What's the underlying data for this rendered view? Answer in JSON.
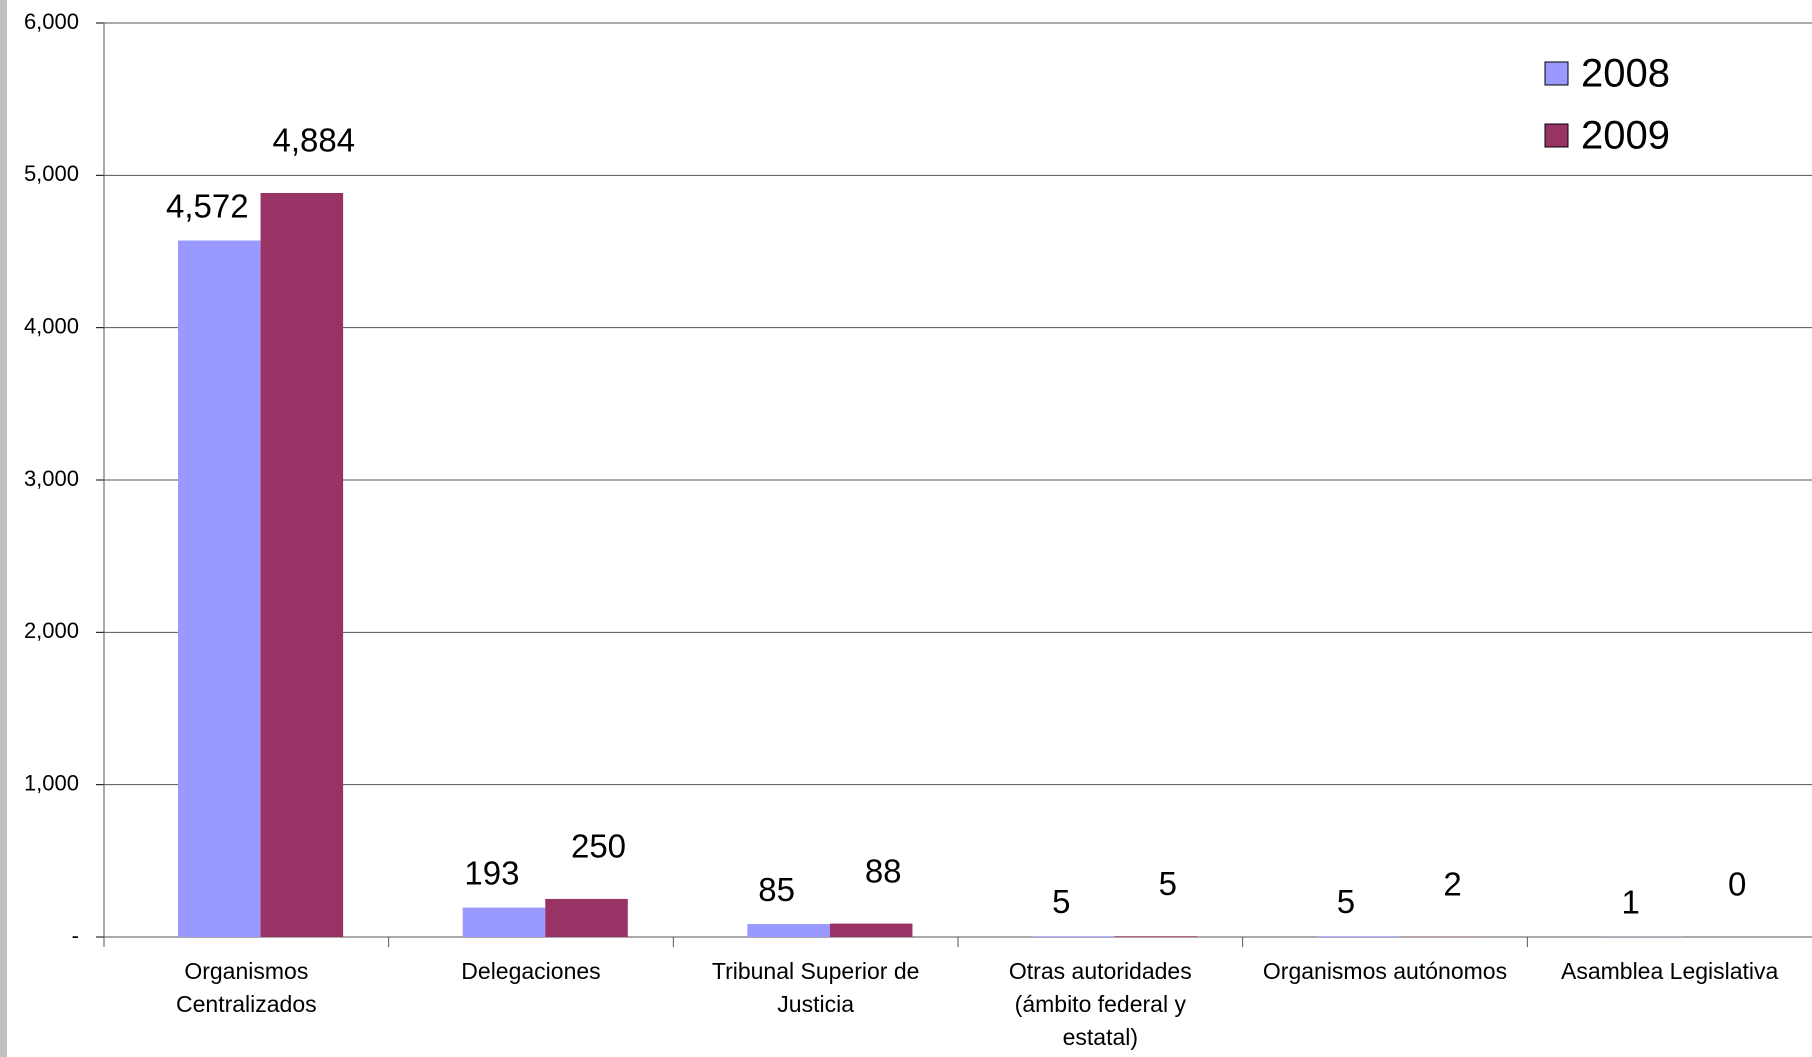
{
  "chart_data": {
    "type": "bar",
    "categories": [
      "Organismos Centralizados",
      "Delegaciones",
      "Tribunal Superior de Justicia",
      "Otras autoridades (ámbito federal y estatal)",
      "Organismos autónomos",
      "Asamblea Legislativa"
    ],
    "series": [
      {
        "name": "2008",
        "color": "#9999ff",
        "values": [
          4572,
          193,
          85,
          5,
          5,
          1
        ],
        "value_labels": [
          "4,572",
          "193",
          "85",
          "5",
          "5",
          "1"
        ]
      },
      {
        "name": "2009",
        "color": "#993366",
        "values": [
          4884,
          250,
          88,
          5,
          2,
          0
        ],
        "value_labels": [
          "4,884",
          "250",
          "88",
          "5",
          "2",
          "0"
        ]
      }
    ],
    "ylim": [
      0,
      6000
    ],
    "yticks": [
      {
        "value": 0,
        "label": "-"
      },
      {
        "value": 1000,
        "label": "1,000"
      },
      {
        "value": 2000,
        "label": "2,000"
      },
      {
        "value": 3000,
        "label": "3,000"
      },
      {
        "value": 4000,
        "label": "4,000"
      },
      {
        "value": 5000,
        "label": "5,000"
      },
      {
        "value": 6000,
        "label": "6,000"
      }
    ],
    "grid": true,
    "legend": "top-right"
  }
}
